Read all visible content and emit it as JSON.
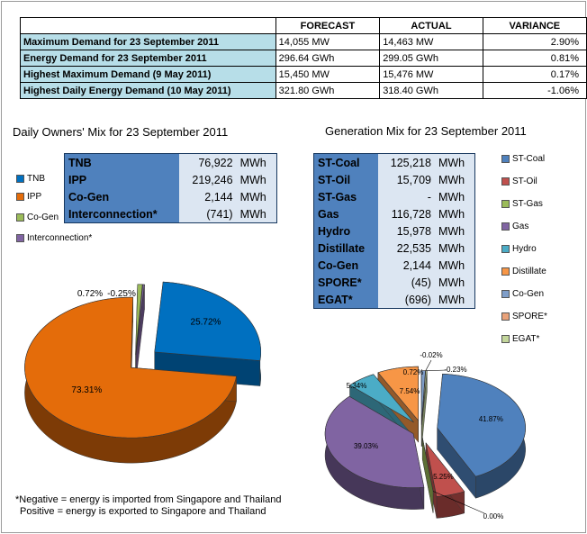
{
  "summary": {
    "headers": [
      "FORECAST",
      "ACTUAL",
      "VARIANCE"
    ],
    "rows": [
      {
        "label": "Maximum Demand for 23 September 2011",
        "forecast": "14,055 MW",
        "actual": "14,463 MW",
        "variance": "2.90%"
      },
      {
        "label": "Energy Demand for 23 September 2011",
        "forecast": "296.64 GWh",
        "actual": "299.05 GWh",
        "variance": "0.81%"
      },
      {
        "label": "Highest Maximum Demand (9 May 2011)",
        "forecast": "15,450 MW",
        "actual": "15,476 MW",
        "variance": "0.17%"
      },
      {
        "label": "Highest Daily Energy Demand (10 May 2011)",
        "forecast": "321.80 GWh",
        "actual": "318.40 GWh",
        "variance": "-1.06%"
      }
    ]
  },
  "owners": {
    "title": "Daily Owners' Mix for 23 September 2011",
    "rows": [
      {
        "name": "TNB",
        "value": "76,922",
        "unit": "MWh"
      },
      {
        "name": "IPP",
        "value": "219,246",
        "unit": "MWh"
      },
      {
        "name": "Co-Gen",
        "value": "2,144",
        "unit": "MWh"
      },
      {
        "name": "Interconnection*",
        "value": "(741)",
        "unit": "MWh"
      }
    ],
    "legend": [
      {
        "label": "TNB",
        "color": "#0070c0"
      },
      {
        "label": "IPP",
        "color": "#e46c0a"
      },
      {
        "label": "Co-Gen",
        "color": "#9bbb59"
      },
      {
        "label": "Interconnection*",
        "color": "#8064a2"
      }
    ]
  },
  "generation": {
    "title": "Generation Mix for 23 September 2011",
    "rows": [
      {
        "name": "ST-Coal",
        "value": "125,218",
        "unit": "MWh"
      },
      {
        "name": "ST-Oil",
        "value": "15,709",
        "unit": "MWh"
      },
      {
        "name": "ST-Gas",
        "value": "-",
        "unit": "MWh"
      },
      {
        "name": "Gas",
        "value": "116,728",
        "unit": "MWh"
      },
      {
        "name": "Hydro",
        "value": "15,978",
        "unit": "MWh"
      },
      {
        "name": "Distillate",
        "value": "22,535",
        "unit": "MWh"
      },
      {
        "name": "Co-Gen",
        "value": "2,144",
        "unit": "MWh"
      },
      {
        "name": "SPORE*",
        "value": "(45)",
        "unit": "MWh"
      },
      {
        "name": "EGAT*",
        "value": "(696)",
        "unit": "MWh"
      }
    ],
    "legend": [
      {
        "label": "ST-Coal",
        "color": "#4f81bd"
      },
      {
        "label": "ST-Oil",
        "color": "#c0504d"
      },
      {
        "label": "ST-Gas",
        "color": "#9bbb59"
      },
      {
        "label": "Gas",
        "color": "#8064a2"
      },
      {
        "label": "Hydro",
        "color": "#4bacc6"
      },
      {
        "label": "Distillate",
        "color": "#f79646"
      },
      {
        "label": "Co-Gen",
        "color": "#7f9ec9"
      },
      {
        "label": "SPORE*",
        "color": "#e9a27a"
      },
      {
        "label": "EGAT*",
        "color": "#c3d69b"
      }
    ]
  },
  "note": {
    "line1": "*Negative = energy is imported from Singapore and Thailand",
    "line2": "Positive = energy is exported to Singapore and Thailand"
  },
  "chart_data": [
    {
      "type": "pie",
      "title": "Daily Owners' Mix for 23 September 2011",
      "categories": [
        "TNB",
        "IPP",
        "Co-Gen",
        "Interconnection*"
      ],
      "values": [
        25.72,
        73.31,
        0.72,
        -0.25
      ],
      "labels": [
        "25.72%",
        "73.31%",
        "0.72%",
        "-0.25%"
      ],
      "legend": "left",
      "colors": [
        "#0070c0",
        "#e46c0a",
        "#9bbb59",
        "#8064a2"
      ]
    },
    {
      "type": "pie",
      "title": "Generation Mix for 23 September 2011",
      "categories": [
        "ST-Coal",
        "ST-Oil",
        "ST-Gas",
        "Gas",
        "Hydro",
        "Distillate",
        "Co-Gen",
        "SPORE*",
        "EGAT*"
      ],
      "values": [
        41.87,
        5.25,
        0.0,
        39.03,
        5.34,
        7.54,
        0.72,
        -0.02,
        -0.23
      ],
      "labels": [
        "41.87%",
        "5.25%",
        "0.00%",
        "39.03%",
        "5.34%",
        "7.54%",
        "0.72%",
        "-0.02%",
        "-0.23%"
      ],
      "legend": "right",
      "colors": [
        "#4f81bd",
        "#c0504d",
        "#9bbb59",
        "#8064a2",
        "#4bacc6",
        "#f79646",
        "#7f9ec9",
        "#e9a27a",
        "#c3d69b"
      ]
    }
  ]
}
